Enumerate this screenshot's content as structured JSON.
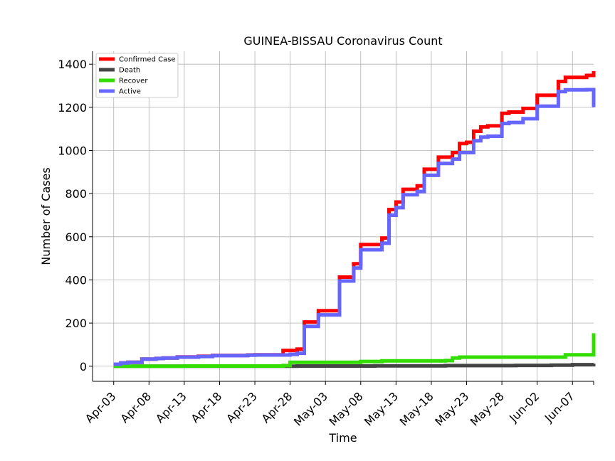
{
  "chart_data": {
    "type": "line",
    "title": "GUINEA-BISSAU Coronavirus Count",
    "xlabel": "Time",
    "ylabel": "Number of Cases",
    "x_range": [
      "2020-03-31",
      "2020-06-10"
    ],
    "ylim": [
      -70,
      1460
    ],
    "y_ticks": [
      0,
      200,
      400,
      600,
      800,
      1000,
      1200,
      1400
    ],
    "x_ticks": [
      {
        "date": "2020-04-03",
        "label": "Apr-03"
      },
      {
        "date": "2020-04-08",
        "label": "Apr-08"
      },
      {
        "date": "2020-04-13",
        "label": "Apr-13"
      },
      {
        "date": "2020-04-18",
        "label": "Apr-18"
      },
      {
        "date": "2020-04-23",
        "label": "Apr-23"
      },
      {
        "date": "2020-04-28",
        "label": "Apr-28"
      },
      {
        "date": "2020-05-03",
        "label": "May-03"
      },
      {
        "date": "2020-05-08",
        "label": "May-08"
      },
      {
        "date": "2020-05-13",
        "label": "May-13"
      },
      {
        "date": "2020-05-18",
        "label": "May-18"
      },
      {
        "date": "2020-05-23",
        "label": "May-23"
      },
      {
        "date": "2020-05-28",
        "label": "May-28"
      },
      {
        "date": "2020-06-02",
        "label": "Jun-02"
      },
      {
        "date": "2020-06-07",
        "label": "Jun-07"
      }
    ],
    "grid": true,
    "legend_position": "top-left",
    "series": [
      {
        "name": "Confirmed Case",
        "color": "#ff0000",
        "points": [
          [
            "2020-04-03",
            9
          ],
          [
            "2020-04-04",
            15
          ],
          [
            "2020-04-05",
            18
          ],
          [
            "2020-04-06",
            18
          ],
          [
            "2020-04-07",
            33
          ],
          [
            "2020-04-08",
            33
          ],
          [
            "2020-04-09",
            36
          ],
          [
            "2020-04-10",
            38
          ],
          [
            "2020-04-11",
            38
          ],
          [
            "2020-04-12",
            43
          ],
          [
            "2020-04-13",
            43
          ],
          [
            "2020-04-14",
            43
          ],
          [
            "2020-04-15",
            46
          ],
          [
            "2020-04-16",
            46
          ],
          [
            "2020-04-17",
            50
          ],
          [
            "2020-04-18",
            50
          ],
          [
            "2020-04-19",
            50
          ],
          [
            "2020-04-20",
            50
          ],
          [
            "2020-04-21",
            50
          ],
          [
            "2020-04-22",
            52
          ],
          [
            "2020-04-23",
            53
          ],
          [
            "2020-04-24",
            53
          ],
          [
            "2020-04-25",
            53
          ],
          [
            "2020-04-26",
            53
          ],
          [
            "2020-04-27",
            73
          ],
          [
            "2020-04-28",
            73
          ],
          [
            "2020-04-29",
            79
          ],
          [
            "2020-04-30",
            205
          ],
          [
            "2020-05-01",
            205
          ],
          [
            "2020-05-02",
            257
          ],
          [
            "2020-05-03",
            257
          ],
          [
            "2020-05-04",
            257
          ],
          [
            "2020-05-05",
            413
          ],
          [
            "2020-05-06",
            413
          ],
          [
            "2020-05-07",
            475
          ],
          [
            "2020-05-08",
            564
          ],
          [
            "2020-05-09",
            564
          ],
          [
            "2020-05-10",
            564
          ],
          [
            "2020-05-11",
            594
          ],
          [
            "2020-05-12",
            726
          ],
          [
            "2020-05-13",
            761
          ],
          [
            "2020-05-14",
            820
          ],
          [
            "2020-05-15",
            820
          ],
          [
            "2020-05-16",
            836
          ],
          [
            "2020-05-17",
            913
          ],
          [
            "2020-05-18",
            913
          ],
          [
            "2020-05-19",
            969
          ],
          [
            "2020-05-20",
            969
          ],
          [
            "2020-05-21",
            990
          ],
          [
            "2020-05-22",
            1032
          ],
          [
            "2020-05-23",
            1038
          ],
          [
            "2020-05-24",
            1089
          ],
          [
            "2020-05-25",
            1109
          ],
          [
            "2020-05-26",
            1114
          ],
          [
            "2020-05-27",
            1114
          ],
          [
            "2020-05-28",
            1172
          ],
          [
            "2020-05-29",
            1178
          ],
          [
            "2020-05-30",
            1178
          ],
          [
            "2020-05-31",
            1195
          ],
          [
            "2020-06-01",
            1195
          ],
          [
            "2020-06-02",
            1256
          ],
          [
            "2020-06-03",
            1256
          ],
          [
            "2020-06-04",
            1256
          ],
          [
            "2020-06-05",
            1320
          ],
          [
            "2020-06-06",
            1339
          ],
          [
            "2020-06-07",
            1339
          ],
          [
            "2020-06-08",
            1339
          ],
          [
            "2020-06-09",
            1348
          ],
          [
            "2020-06-10",
            1368
          ]
        ]
      },
      {
        "name": "Death",
        "color": "#444444",
        "points": [
          [
            "2020-04-03",
            0
          ],
          [
            "2020-04-28",
            0
          ],
          [
            "2020-04-29",
            1
          ],
          [
            "2020-05-10",
            2
          ],
          [
            "2020-05-20",
            3
          ],
          [
            "2020-05-30",
            4
          ],
          [
            "2020-06-04",
            5
          ],
          [
            "2020-06-07",
            7
          ],
          [
            "2020-06-10",
            12
          ]
        ]
      },
      {
        "name": "Recover",
        "color": "#33dd00",
        "points": [
          [
            "2020-04-03",
            0
          ],
          [
            "2020-04-13",
            1
          ],
          [
            "2020-04-27",
            3
          ],
          [
            "2020-04-28",
            18
          ],
          [
            "2020-05-07",
            18
          ],
          [
            "2020-05-08",
            22
          ],
          [
            "2020-05-11",
            25
          ],
          [
            "2020-05-20",
            26
          ],
          [
            "2020-05-21",
            38
          ],
          [
            "2020-05-22",
            42
          ],
          [
            "2020-06-05",
            42
          ],
          [
            "2020-06-06",
            53
          ],
          [
            "2020-06-09",
            53
          ],
          [
            "2020-06-10",
            153
          ]
        ]
      },
      {
        "name": "Active",
        "color": "#6666ff",
        "points": [
          [
            "2020-04-03",
            9
          ],
          [
            "2020-04-04",
            15
          ],
          [
            "2020-04-05",
            18
          ],
          [
            "2020-04-06",
            18
          ],
          [
            "2020-04-07",
            33
          ],
          [
            "2020-04-08",
            33
          ],
          [
            "2020-04-09",
            36
          ],
          [
            "2020-04-10",
            38
          ],
          [
            "2020-04-11",
            38
          ],
          [
            "2020-04-12",
            42
          ],
          [
            "2020-04-13",
            42
          ],
          [
            "2020-04-14",
            42
          ],
          [
            "2020-04-15",
            45
          ],
          [
            "2020-04-16",
            45
          ],
          [
            "2020-04-17",
            49
          ],
          [
            "2020-04-18",
            49
          ],
          [
            "2020-04-19",
            49
          ],
          [
            "2020-04-20",
            49
          ],
          [
            "2020-04-21",
            49
          ],
          [
            "2020-04-22",
            51
          ],
          [
            "2020-04-23",
            52
          ],
          [
            "2020-04-24",
            52
          ],
          [
            "2020-04-25",
            52
          ],
          [
            "2020-04-26",
            52
          ],
          [
            "2020-04-27",
            52
          ],
          [
            "2020-04-28",
            55
          ],
          [
            "2020-04-29",
            60
          ],
          [
            "2020-04-30",
            185
          ],
          [
            "2020-05-01",
            185
          ],
          [
            "2020-05-02",
            238
          ],
          [
            "2020-05-03",
            238
          ],
          [
            "2020-05-04",
            238
          ],
          [
            "2020-05-05",
            395
          ],
          [
            "2020-05-06",
            395
          ],
          [
            "2020-05-07",
            455
          ],
          [
            "2020-05-08",
            540
          ],
          [
            "2020-05-09",
            540
          ],
          [
            "2020-05-10",
            540
          ],
          [
            "2020-05-11",
            570
          ],
          [
            "2020-05-12",
            700
          ],
          [
            "2020-05-13",
            735
          ],
          [
            "2020-05-14",
            795
          ],
          [
            "2020-05-15",
            795
          ],
          [
            "2020-05-16",
            810
          ],
          [
            "2020-05-17",
            885
          ],
          [
            "2020-05-18",
            885
          ],
          [
            "2020-05-19",
            940
          ],
          [
            "2020-05-20",
            940
          ],
          [
            "2020-05-21",
            960
          ],
          [
            "2020-05-22",
            990
          ],
          [
            "2020-05-23",
            990
          ],
          [
            "2020-05-24",
            1045
          ],
          [
            "2020-05-25",
            1062
          ],
          [
            "2020-05-26",
            1066
          ],
          [
            "2020-05-27",
            1066
          ],
          [
            "2020-05-28",
            1125
          ],
          [
            "2020-05-29",
            1130
          ],
          [
            "2020-05-30",
            1130
          ],
          [
            "2020-05-31",
            1147
          ],
          [
            "2020-06-01",
            1147
          ],
          [
            "2020-06-02",
            1205
          ],
          [
            "2020-06-03",
            1205
          ],
          [
            "2020-06-04",
            1205
          ],
          [
            "2020-06-05",
            1273
          ],
          [
            "2020-06-06",
            1281
          ],
          [
            "2020-06-07",
            1281
          ],
          [
            "2020-06-08",
            1281
          ],
          [
            "2020-06-09",
            1282
          ],
          [
            "2020-06-10",
            1200
          ]
        ]
      }
    ]
  }
}
